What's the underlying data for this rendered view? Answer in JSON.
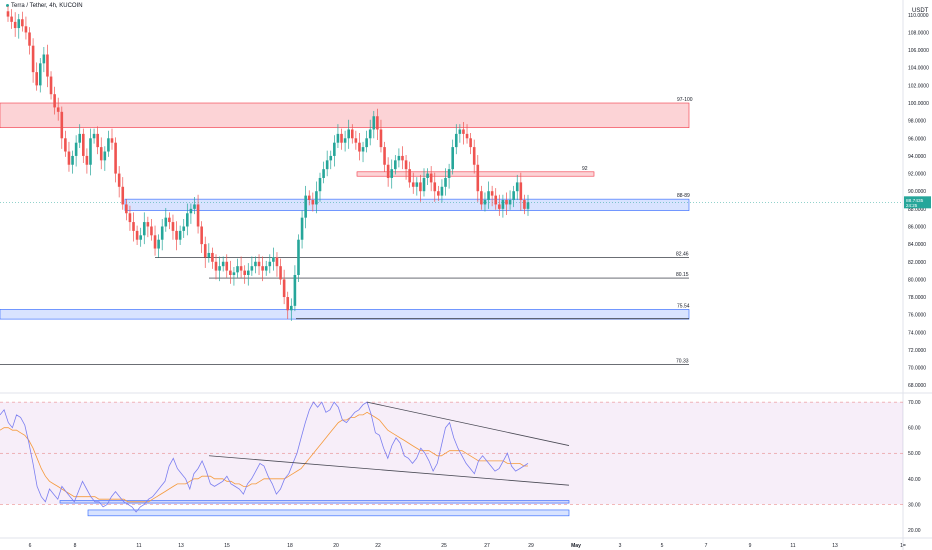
{
  "header": {
    "symbol": "Terra / Tether, 4h, KUCOIN",
    "currency": "USDT"
  },
  "colors": {
    "up": "#26a69a",
    "down": "#ef5350",
    "rsi": "#7b7ef0",
    "rsi_ma": "#f59a3c",
    "red_zone_fill": "rgba(242,54,69,0.22)",
    "red_zone_stroke": "#f23645",
    "blue_zone_fill": "rgba(41,98,255,0.18)",
    "blue_zone_stroke": "#2962ff",
    "rsi_band": "rgba(156,39,176,0.08)"
  },
  "chart_data": [
    {
      "type": "candlestick",
      "y_axis": {
        "ticks": [
          "110.0000",
          "108.0000",
          "106.0000",
          "104.0000",
          "102.0000",
          "100.0000",
          "98.0000",
          "96.0000",
          "94.0000",
          "92.0000",
          "90.0000",
          "88.0000",
          "86.0000",
          "84.0000",
          "82.0000",
          "80.0000",
          "78.0000",
          "76.0000",
          "74.0000",
          "72.0000",
          "70.0000",
          "68.0000"
        ],
        "range": [
          67.8,
          111.0
        ]
      },
      "last_price": {
        "price": "88.7435",
        "countdown": "24:25",
        "value": 88.74
      },
      "x_axis": {
        "ticks": [
          "6",
          "8",
          "11",
          "13",
          "15",
          "18",
          "20",
          "22",
          "25",
          "27",
          "29",
          "May",
          "3",
          "5",
          "7",
          "9",
          "11",
          "13",
          "1="
        ]
      },
      "levels": [
        {
          "label": "82.46",
          "value": 82.46
        },
        {
          "label": "80.15",
          "value": 80.15
        },
        {
          "label": "70.33",
          "value": 70.33
        }
      ],
      "zones": [
        {
          "label": "97-100",
          "low": 97.2,
          "high": 100.0,
          "color": "red"
        },
        {
          "label": "92",
          "low": 91.7,
          "high": 92.2,
          "color": "red"
        },
        {
          "label": "88-89",
          "low": 87.8,
          "high": 89.1,
          "color": "blue"
        },
        {
          "label": "75.54",
          "low": 75.5,
          "high": 76.6,
          "color": "blue"
        }
      ],
      "close_series": [
        109.8,
        109.2,
        108.5,
        109.5,
        108.7,
        108.0,
        106.5,
        103.5,
        102.0,
        104.5,
        105.5,
        103.0,
        101.0,
        99.5,
        99.0,
        96.0,
        94.5,
        93.0,
        94.0,
        95.5,
        96.5,
        94.0,
        93.0,
        96.0,
        96.5,
        95.0,
        93.5,
        94.5,
        96.0,
        95.5,
        92.0,
        90.5,
        88.5,
        87.5,
        86.5,
        85.5,
        84.5,
        85.0,
        86.5,
        86.0,
        85.0,
        83.5,
        84.5,
        86.0,
        87.0,
        86.5,
        85.5,
        84.5,
        85.5,
        86.0,
        87.5,
        88.0,
        88.5,
        86.0,
        84.0,
        82.5,
        83.0,
        82.0,
        81.0,
        81.5,
        82.0,
        81.0,
        80.5,
        80.8,
        81.5,
        81.0,
        80.5,
        81.0,
        81.5,
        82.0,
        81.5,
        81.0,
        81.5,
        82.0,
        82.5,
        81.5,
        80.0,
        78.0,
        76.5,
        77.0,
        80.5,
        84.5,
        87.0,
        89.5,
        89.0,
        88.5,
        90.0,
        91.5,
        92.5,
        93.5,
        94.0,
        95.5,
        96.5,
        95.5,
        96.0,
        97.0,
        96.0,
        95.5,
        94.5,
        95.0,
        96.0,
        97.0,
        98.5,
        97.0,
        95.0,
        93.0,
        91.5,
        92.5,
        93.5,
        94.0,
        93.5,
        92.5,
        91.0,
        90.5,
        91.0,
        90.0,
        91.5,
        92.0,
        91.0,
        90.0,
        89.5,
        90.5,
        91.5,
        92.5,
        95.0,
        96.5,
        97.0,
        96.5,
        96.0,
        95.0,
        93.0,
        90.0,
        88.5,
        89.0,
        90.0,
        89.5,
        88.5,
        88.0,
        89.0,
        88.5,
        89.0,
        90.0,
        91.0,
        89.0,
        88.0,
        88.74
      ]
    },
    {
      "type": "line",
      "name": "RSI",
      "y_axis": {
        "ticks": [
          "70.00",
          "60.00",
          "50.00",
          "40.00",
          "30.00",
          "20.00"
        ],
        "range": [
          18,
          72
        ],
        "bands": [
          30,
          50,
          70
        ]
      },
      "rsi_series": [
        65,
        67,
        62,
        60,
        65,
        64,
        61,
        54,
        46,
        37,
        33,
        31,
        36,
        34,
        32,
        37,
        35,
        33,
        31,
        35,
        39,
        36,
        33,
        31,
        31,
        29,
        30,
        33,
        35,
        33,
        31,
        30,
        29,
        27,
        29,
        30,
        32,
        33,
        35,
        37,
        39,
        45,
        48,
        44,
        42,
        40,
        36,
        42,
        44,
        47,
        43,
        38,
        37,
        38,
        39,
        41,
        38,
        37,
        36,
        34,
        38,
        40,
        43,
        46,
        45,
        41,
        38,
        34,
        36,
        40,
        42,
        46,
        50,
        56,
        62,
        67,
        70,
        68,
        70,
        66,
        67,
        70,
        68,
        63,
        62,
        64,
        66,
        67,
        69,
        70,
        65,
        58,
        57,
        52,
        48,
        53,
        56,
        54,
        49,
        48,
        46,
        48,
        52,
        50,
        47,
        43,
        46,
        53,
        60,
        62,
        56,
        52,
        49,
        46,
        44,
        42,
        47,
        49,
        47,
        45,
        43,
        44,
        47,
        50,
        45,
        43,
        44,
        45,
        46
      ],
      "rsi_ma_series": [
        59,
        60,
        60,
        59,
        59,
        58,
        57,
        55,
        52,
        48,
        44,
        41,
        39,
        38,
        37,
        36,
        35,
        34,
        33,
        33,
        33,
        33,
        33,
        33,
        32,
        32,
        32,
        32,
        32,
        32,
        32,
        31,
        31,
        31,
        31,
        31,
        31,
        32,
        33,
        34,
        35,
        36,
        37,
        38,
        38,
        38,
        39,
        40,
        40,
        41,
        41,
        41,
        40,
        40,
        40,
        39,
        39,
        38,
        38,
        37,
        37,
        38,
        38,
        39,
        40,
        40,
        40,
        40,
        40,
        40,
        41,
        42,
        43,
        44,
        46,
        48,
        50,
        52,
        54,
        56,
        58,
        60,
        62,
        63,
        63,
        64,
        64,
        65,
        65,
        66,
        65,
        64,
        63,
        61,
        59,
        58,
        57,
        56,
        55,
        54,
        53,
        52,
        51,
        51,
        51,
        50,
        49,
        49,
        50,
        51,
        51,
        51,
        51,
        50,
        49,
        48,
        47,
        47,
        47,
        47,
        47,
        47,
        47,
        46,
        46,
        46,
        46,
        45,
        45
      ],
      "trendlines": [
        "upper",
        "lower"
      ],
      "zones": [
        "support-1",
        "support-2"
      ]
    }
  ]
}
